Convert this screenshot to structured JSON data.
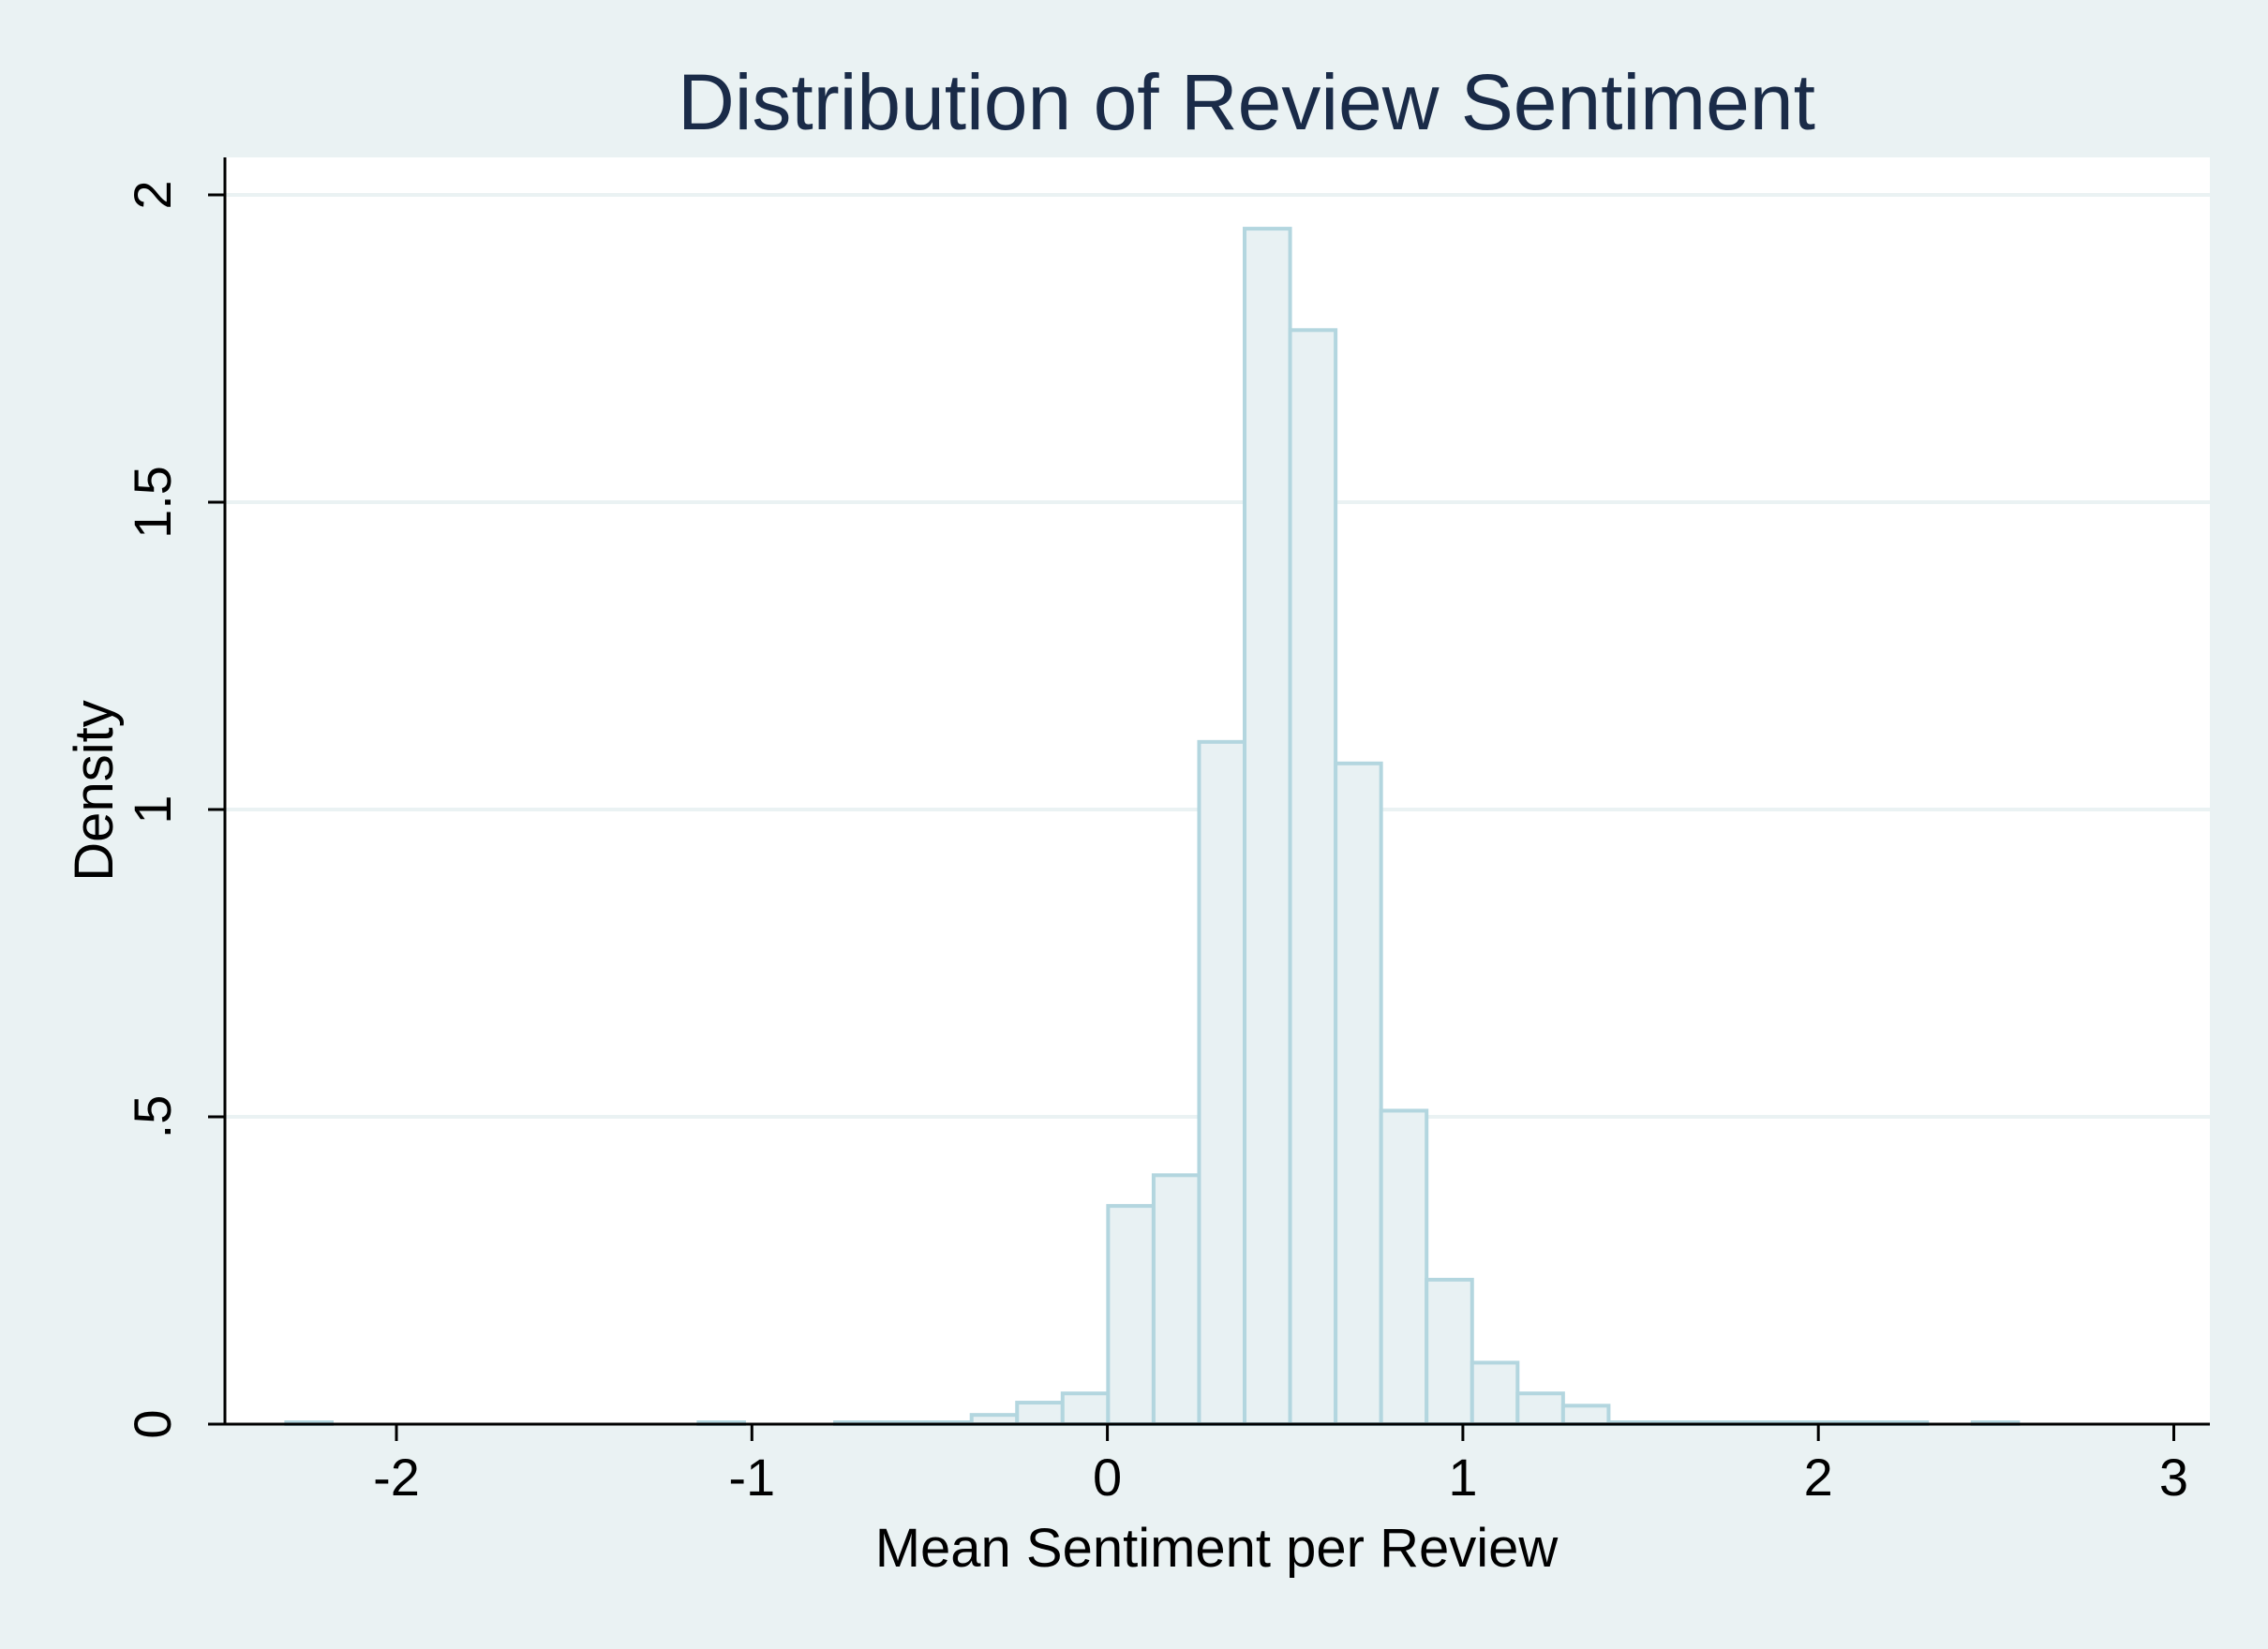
{
  "chart_data": {
    "type": "bar",
    "title": "Distribution of Review Sentiment",
    "xlabel": "Mean Sentiment per Review",
    "ylabel": "Density",
    "xlim": [
      -2.5,
      3.1
    ],
    "ylim": [
      0,
      2.1
    ],
    "x_ticks": [
      {
        "value": -2,
        "label": "-2"
      },
      {
        "value": -1,
        "label": "-1"
      },
      {
        "value": 0,
        "label": "0"
      },
      {
        "value": 1,
        "label": "1"
      },
      {
        "value": 2,
        "label": "2"
      },
      {
        "value": 3,
        "label": "3"
      }
    ],
    "y_ticks": [
      {
        "value": 0,
        "label": "0"
      },
      {
        "value": 0.5,
        "label": ".5"
      },
      {
        "value": 1,
        "label": "1"
      },
      {
        "value": 1.5,
        "label": "1.5"
      },
      {
        "value": 2,
        "label": "2"
      }
    ],
    "grid": true,
    "bin_width": 0.128,
    "bins": [
      {
        "start": -2.31,
        "value": 0.003
      },
      {
        "start": -1.15,
        "value": 0.003
      },
      {
        "start": -0.766,
        "value": 0.003
      },
      {
        "start": -0.638,
        "value": 0.003
      },
      {
        "start": -0.51,
        "value": 0.003
      },
      {
        "start": -0.382,
        "value": 0.015
      },
      {
        "start": -0.254,
        "value": 0.035
      },
      {
        "start": -0.126,
        "value": 0.05
      },
      {
        "start": 0.002,
        "value": 0.355
      },
      {
        "start": 0.13,
        "value": 0.405
      },
      {
        "start": 0.258,
        "value": 1.11
      },
      {
        "start": 0.386,
        "value": 1.945
      },
      {
        "start": 0.514,
        "value": 1.78
      },
      {
        "start": 0.642,
        "value": 1.075
      },
      {
        "start": 0.77,
        "value": 0.51
      },
      {
        "start": 0.898,
        "value": 0.235
      },
      {
        "start": 1.026,
        "value": 0.1
      },
      {
        "start": 1.154,
        "value": 0.05
      },
      {
        "start": 1.282,
        "value": 0.03
      },
      {
        "start": 1.41,
        "value": 0.003
      },
      {
        "start": 1.538,
        "value": 0.003
      },
      {
        "start": 1.666,
        "value": 0.003
      },
      {
        "start": 1.794,
        "value": 0.003
      },
      {
        "start": 1.922,
        "value": 0.003
      },
      {
        "start": 2.05,
        "value": 0.003
      },
      {
        "start": 2.178,
        "value": 0.003
      },
      {
        "start": 2.434,
        "value": 0.003
      }
    ]
  }
}
